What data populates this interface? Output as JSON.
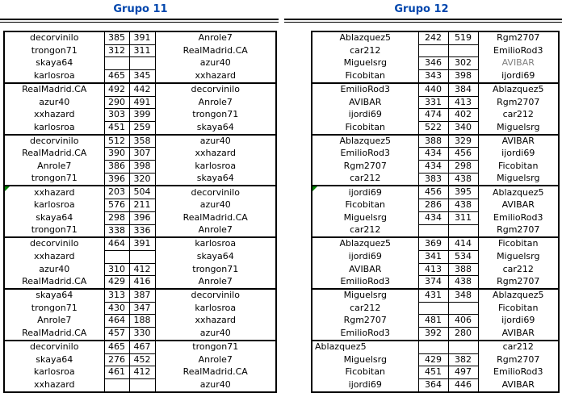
{
  "colors": {
    "title_blue": "#0046ad",
    "border_black": "#000000",
    "text_black": "#000000",
    "muted_grey": "#808080",
    "marker_green": "#008000",
    "background": "#ffffff"
  },
  "groups": [
    {
      "title": "Grupo 11",
      "blocks": [
        {
          "rows": [
            {
              "left": "decorvinilo",
              "score1": "385",
              "score2": "391",
              "right": "Anrole7"
            },
            {
              "left": "trongon71",
              "score1": "312",
              "score2": "311",
              "right": "RealMadrid.CA"
            },
            {
              "left": "skaya64",
              "score1": "",
              "score2": "",
              "right": "azur40"
            },
            {
              "left": "karlosroa",
              "score1": "465",
              "score2": "345",
              "right": "xxhazard"
            }
          ]
        },
        {
          "rows": [
            {
              "left": "RealMadrid.CA",
              "score1": "492",
              "score2": "442",
              "right": "decorvinilo"
            },
            {
              "left": "azur40",
              "score1": "290",
              "score2": "491",
              "right": "Anrole7"
            },
            {
              "left": "xxhazard",
              "score1": "303",
              "score2": "399",
              "right": "trongon71"
            },
            {
              "left": "karlosroa",
              "score1": "451",
              "score2": "259",
              "right": "skaya64"
            }
          ]
        },
        {
          "rows": [
            {
              "left": "decorvinilo",
              "score1": "512",
              "score2": "358",
              "right": "azur40"
            },
            {
              "left": "RealMadrid.CA",
              "score1": "390",
              "score2": "307",
              "right": "xxhazard"
            },
            {
              "left": "Anrole7",
              "score1": "386",
              "score2": "398",
              "right": "karlosroa"
            },
            {
              "left": "trongon71",
              "score1": "396",
              "score2": "320",
              "right": "skaya64"
            }
          ]
        },
        {
          "rows": [
            {
              "left": "xxhazard",
              "score1": "203",
              "score2": "504",
              "right": "decorvinilo",
              "left_marker": true
            },
            {
              "left": "karlosroa",
              "score1": "576",
              "score2": "211",
              "right": "azur40"
            },
            {
              "left": "skaya64",
              "score1": "298",
              "score2": "396",
              "right": "RealMadrid.CA"
            },
            {
              "left": "trongon71",
              "score1": "338",
              "score2": "336",
              "right": "Anrole7"
            }
          ]
        },
        {
          "rows": [
            {
              "left": "decorvinilo",
              "score1": "464",
              "score2": "391",
              "right": "karlosroa"
            },
            {
              "left": "xxhazard",
              "score1": "",
              "score2": "",
              "right": "skaya64"
            },
            {
              "left": "azur40",
              "score1": "310",
              "score2": "412",
              "right": "trongon71"
            },
            {
              "left": "RealMadrid.CA",
              "score1": "429",
              "score2": "416",
              "right": "Anrole7"
            }
          ]
        },
        {
          "rows": [
            {
              "left": "skaya64",
              "score1": "313",
              "score2": "387",
              "right": "decorvinilo"
            },
            {
              "left": "trongon71",
              "score1": "430",
              "score2": "347",
              "right": "karlosroa"
            },
            {
              "left": "Anrole7",
              "score1": "464",
              "score2": "188",
              "right": "xxhazard"
            },
            {
              "left": "RealMadrid.CA",
              "score1": "457",
              "score2": "330",
              "right": "azur40"
            }
          ]
        },
        {
          "rows": [
            {
              "left": "decorvinilo",
              "score1": "465",
              "score2": "467",
              "right": "trongon71"
            },
            {
              "left": "skaya64",
              "score1": "276",
              "score2": "452",
              "right": "Anrole7"
            },
            {
              "left": "karlosroa",
              "score1": "461",
              "score2": "412",
              "right": "RealMadrid.CA"
            },
            {
              "left": "xxhazard",
              "score1": "",
              "score2": "",
              "right": "azur40"
            }
          ]
        }
      ]
    },
    {
      "title": "Grupo 12",
      "blocks": [
        {
          "rows": [
            {
              "left": "Ablazquez5",
              "score1": "242",
              "score2": "519",
              "right": "Rgm2707"
            },
            {
              "left": "car212",
              "score1": "",
              "score2": "",
              "right": "EmilioRod3"
            },
            {
              "left": "Miguelsrg",
              "score1": "346",
              "score2": "302",
              "right": "AVIBAR",
              "right_muted": true
            },
            {
              "left": "Ficobitan",
              "score1": "343",
              "score2": "398",
              "right": "ijordi69"
            }
          ]
        },
        {
          "rows": [
            {
              "left": "EmilioRod3",
              "score1": "440",
              "score2": "384",
              "right": "Ablazquez5"
            },
            {
              "left": "AVIBAR",
              "score1": "331",
              "score2": "413",
              "right": "Rgm2707"
            },
            {
              "left": "ijordi69",
              "score1": "474",
              "score2": "402",
              "right": "car212"
            },
            {
              "left": "Ficobitan",
              "score1": "522",
              "score2": "340",
              "right": "Miguelsrg"
            }
          ]
        },
        {
          "rows": [
            {
              "left": "Ablazquez5",
              "score1": "388",
              "score2": "329",
              "right": "AVIBAR"
            },
            {
              "left": "EmilioRod3",
              "score1": "434",
              "score2": "456",
              "right": "ijordi69"
            },
            {
              "left": "Rgm2707",
              "score1": "434",
              "score2": "298",
              "right": "Ficobitan"
            },
            {
              "left": "car212",
              "score1": "383",
              "score2": "438",
              "right": "Miguelsrg"
            }
          ]
        },
        {
          "rows": [
            {
              "left": "ijordi69",
              "score1": "456",
              "score2": "395",
              "right": "Ablazquez5",
              "left_marker": true
            },
            {
              "left": "Ficobitan",
              "score1": "286",
              "score2": "438",
              "right": "AVIBAR"
            },
            {
              "left": "Miguelsrg",
              "score1": "434",
              "score2": "311",
              "right": "EmilioRod3"
            },
            {
              "left": "car212",
              "score1": "",
              "score2": "",
              "right": "Rgm2707"
            }
          ]
        },
        {
          "rows": [
            {
              "left": "Ablazquez5",
              "score1": "369",
              "score2": "414",
              "right": "Ficobitan"
            },
            {
              "left": "ijordi69",
              "score1": "341",
              "score2": "534",
              "right": "Miguelsrg"
            },
            {
              "left": "AVIBAR",
              "score1": "413",
              "score2": "388",
              "right": "car212"
            },
            {
              "left": "EmilioRod3",
              "score1": "374",
              "score2": "438",
              "right": "Rgm2707"
            }
          ]
        },
        {
          "rows": [
            {
              "left": "Miguelsrg",
              "score1": "431",
              "score2": "348",
              "right": "Ablazquez5"
            },
            {
              "left": "car212",
              "score1": "",
              "score2": "",
              "right": "Ficobitan"
            },
            {
              "left": "Rgm2707",
              "score1": "481",
              "score2": "406",
              "right": "ijordi69"
            },
            {
              "left": "EmilioRod3",
              "score1": "392",
              "score2": "280",
              "right": "AVIBAR"
            }
          ]
        },
        {
          "rows": [
            {
              "left": "Ablazquez5",
              "score1": "",
              "score2": "",
              "right": "car212",
              "left_align": true
            },
            {
              "left": "Miguelsrg",
              "score1": "429",
              "score2": "382",
              "right": "Rgm2707"
            },
            {
              "left": "Ficobitan",
              "score1": "451",
              "score2": "497",
              "right": "EmilioRod3"
            },
            {
              "left": "ijordi69",
              "score1": "364",
              "score2": "446",
              "right": "AVIBAR"
            }
          ]
        }
      ]
    }
  ]
}
